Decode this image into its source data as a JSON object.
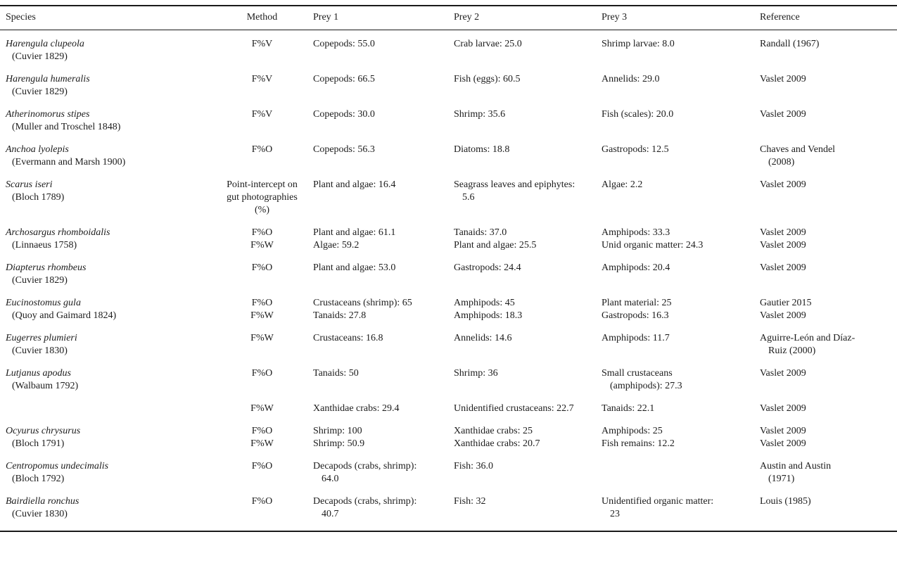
{
  "table": {
    "columns": [
      "Species",
      "Method",
      "Prey 1",
      "Prey 2",
      "Prey 3",
      "Reference"
    ],
    "rows": [
      {
        "species": "Harengula clupeola",
        "authority": "(Cuvier 1829)",
        "methods": [
          "F%V"
        ],
        "prey1": [
          "Copepods: 55.0"
        ],
        "prey2": [
          "Crab larvae: 25.0"
        ],
        "prey3": [
          "Shrimp larvae: 8.0"
        ],
        "reference": [
          "Randall (1967)"
        ]
      },
      {
        "species": "Harengula humeralis",
        "authority": "(Cuvier 1829)",
        "methods": [
          "F%V"
        ],
        "prey1": [
          "Copepods: 66.5"
        ],
        "prey2": [
          "Fish (eggs): 60.5"
        ],
        "prey3": [
          "Annelids: 29.0"
        ],
        "reference": [
          "Vaslet 2009"
        ]
      },
      {
        "species": "Atherinomorus stipes",
        "authority": "(Muller and Troschel 1848)",
        "methods": [
          "F%V"
        ],
        "prey1": [
          "Copepods: 30.0"
        ],
        "prey2": [
          "Shrimp: 35.6"
        ],
        "prey3": [
          "Fish (scales): 20.0"
        ],
        "reference": [
          "Vaslet 2009"
        ]
      },
      {
        "species": "Anchoa lyolepis",
        "authority": "(Evermann and Marsh 1900)",
        "methods": [
          "F%O"
        ],
        "prey1": [
          "Copepods: 56.3"
        ],
        "prey2": [
          "Diatoms: 18.8"
        ],
        "prey3": [
          "Gastropods: 12.5"
        ],
        "reference": [
          "Chaves and Vendel (2008)"
        ]
      },
      {
        "species": "Scarus iseri",
        "authority": "(Bloch 1789)",
        "methods": [
          "Point-intercept on gut photographies (%)"
        ],
        "prey1": [
          "Plant and algae: 16.4"
        ],
        "prey2": [
          "Seagrass leaves and epiphytes: 5.6"
        ],
        "prey3": [
          "Algae: 2.2"
        ],
        "reference": [
          "Vaslet 2009"
        ]
      },
      {
        "species": "Archosargus rhomboidalis",
        "authority": "(Linnaeus 1758)",
        "methods": [
          "F%O",
          "F%W"
        ],
        "prey1": [
          "Plant and algae: 61.1",
          "Algae: 59.2"
        ],
        "prey2": [
          "Tanaids: 37.0",
          "Plant and algae: 25.5"
        ],
        "prey3": [
          "Amphipods: 33.3",
          "Unid organic matter: 24.3"
        ],
        "reference": [
          "Vaslet 2009",
          "Vaslet 2009"
        ]
      },
      {
        "species": "Diapterus rhombeus",
        "authority": "(Cuvier 1829)",
        "methods": [
          "F%O"
        ],
        "prey1": [
          "Plant and algae: 53.0"
        ],
        "prey2": [
          "Gastropods: 24.4"
        ],
        "prey3": [
          "Amphipods: 20.4"
        ],
        "reference": [
          "Vaslet 2009"
        ]
      },
      {
        "species": "Eucinostomus gula",
        "authority": "(Quoy and Gaimard 1824)",
        "methods": [
          "F%O",
          "F%W"
        ],
        "prey1": [
          "Crustaceans (shrimp): 65",
          "Tanaids: 27.8"
        ],
        "prey2": [
          "Amphipods: 45",
          "Amphipods: 18.3"
        ],
        "prey3": [
          "Plant material: 25",
          "Gastropods: 16.3"
        ],
        "reference": [
          "Gautier 2015",
          "Vaslet 2009"
        ]
      },
      {
        "species": "Eugerres plumieri",
        "authority": "(Cuvier 1830)",
        "methods": [
          "F%W"
        ],
        "prey1": [
          "Crustaceans: 16.8"
        ],
        "prey2": [
          "Annelids: 14.6"
        ],
        "prey3": [
          "Amphipods: 11.7"
        ],
        "reference": [
          "Aguirre-León and Díaz-Ruiz (2000)"
        ]
      },
      {
        "species": "Lutjanus apodus",
        "authority": "(Walbaum 1792)",
        "methods": [
          "F%O"
        ],
        "prey1": [
          "Tanaids: 50"
        ],
        "prey2": [
          "Shrimp: 36"
        ],
        "prey3": [
          "Small crustaceans (amphipods): 27.3"
        ],
        "reference": [
          "Vaslet 2009"
        ]
      },
      {
        "species": "",
        "authority": "",
        "methods": [
          "F%W"
        ],
        "prey1": [
          "Xanthidae crabs: 29.4"
        ],
        "prey2": [
          "Unidentified crustaceans: 22.7"
        ],
        "prey3": [
          "Tanaids: 22.1"
        ],
        "reference": [
          "Vaslet 2009"
        ]
      },
      {
        "species": "Ocyurus chrysurus",
        "authority": "(Bloch 1791)",
        "methods": [
          "F%O",
          "F%W"
        ],
        "prey1": [
          "Shrimp: 100",
          "Shrimp: 50.9"
        ],
        "prey2": [
          "Xanthidae crabs: 25",
          "Xanthidae crabs: 20.7"
        ],
        "prey3": [
          "Amphipods: 25",
          "Fish remains: 12.2"
        ],
        "reference": [
          "Vaslet 2009",
          "Vaslet 2009"
        ]
      },
      {
        "species": "Centropomus undecimalis",
        "authority": "(Bloch 1792)",
        "methods": [
          "F%O"
        ],
        "prey1": [
          "Decapods (crabs, shrimp): 64.0"
        ],
        "prey2": [
          "Fish: 36.0"
        ],
        "prey3": [],
        "reference": [
          "Austin and Austin (1971)"
        ]
      },
      {
        "species": "Bairdiella ronchus",
        "authority": "(Cuvier 1830)",
        "methods": [
          "F%O"
        ],
        "prey1": [
          "Decapods (crabs, shrimp): 40.7"
        ],
        "prey2": [
          "Fish: 32"
        ],
        "prey3": [
          "Unidentified organic matter: 23"
        ],
        "reference": [
          "Louis (1985)"
        ]
      }
    ]
  }
}
